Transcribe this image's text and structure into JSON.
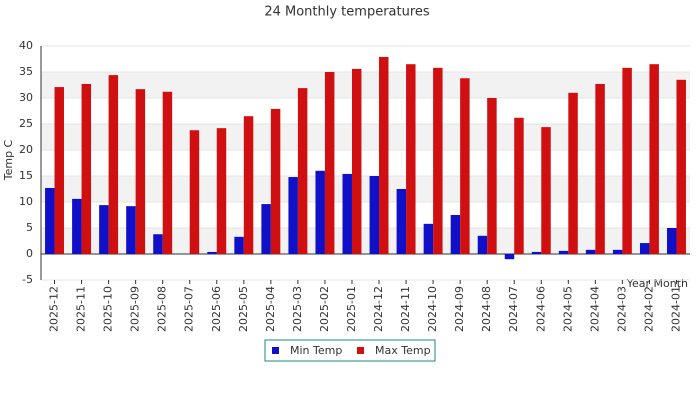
{
  "chart_data": {
    "type": "bar",
    "title": "24 Monthly temperatures",
    "x_label": "Year Month",
    "y_label": "Temp C",
    "categories": [
      "2025-12",
      "2025-11",
      "2025-10",
      "2025-09",
      "2025-08",
      "2025-07",
      "2025-06",
      "2025-05",
      "2025-04",
      "2025-03",
      "2025-02",
      "2025-01",
      "2024-12",
      "2024-11",
      "2024-10",
      "2024-09",
      "2024-08",
      "2024-07",
      "2024-06",
      "2024-05",
      "2024-04",
      "2024-03",
      "2024-02",
      "2024-01"
    ],
    "series": [
      {
        "name": "Min Temp",
        "color": "#1010c8",
        "values": [
          12.7,
          10.6,
          9.4,
          9.2,
          3.8,
          0,
          0.4,
          3.3,
          9.6,
          14.8,
          16.0,
          15.4,
          15.0,
          12.5,
          5.8,
          7.5,
          3.5,
          -1.0,
          0.4,
          0.6,
          0.8,
          0.8,
          2.1,
          5.0
        ]
      },
      {
        "name": "Max Temp",
        "color": "#d01010",
        "values": [
          32.1,
          32.7,
          34.4,
          31.7,
          31.2,
          23.8,
          24.2,
          26.5,
          27.9,
          31.9,
          35.0,
          35.6,
          37.9,
          36.5,
          35.8,
          33.8,
          30.0,
          26.2,
          24.4,
          31.0,
          32.7,
          35.8,
          36.5,
          33.5
        ]
      }
    ],
    "ylim": [
      -5,
      40
    ],
    "yticks": [
      -5,
      0,
      5,
      10,
      15,
      20,
      25,
      30,
      35,
      40
    ],
    "grid": true
  }
}
